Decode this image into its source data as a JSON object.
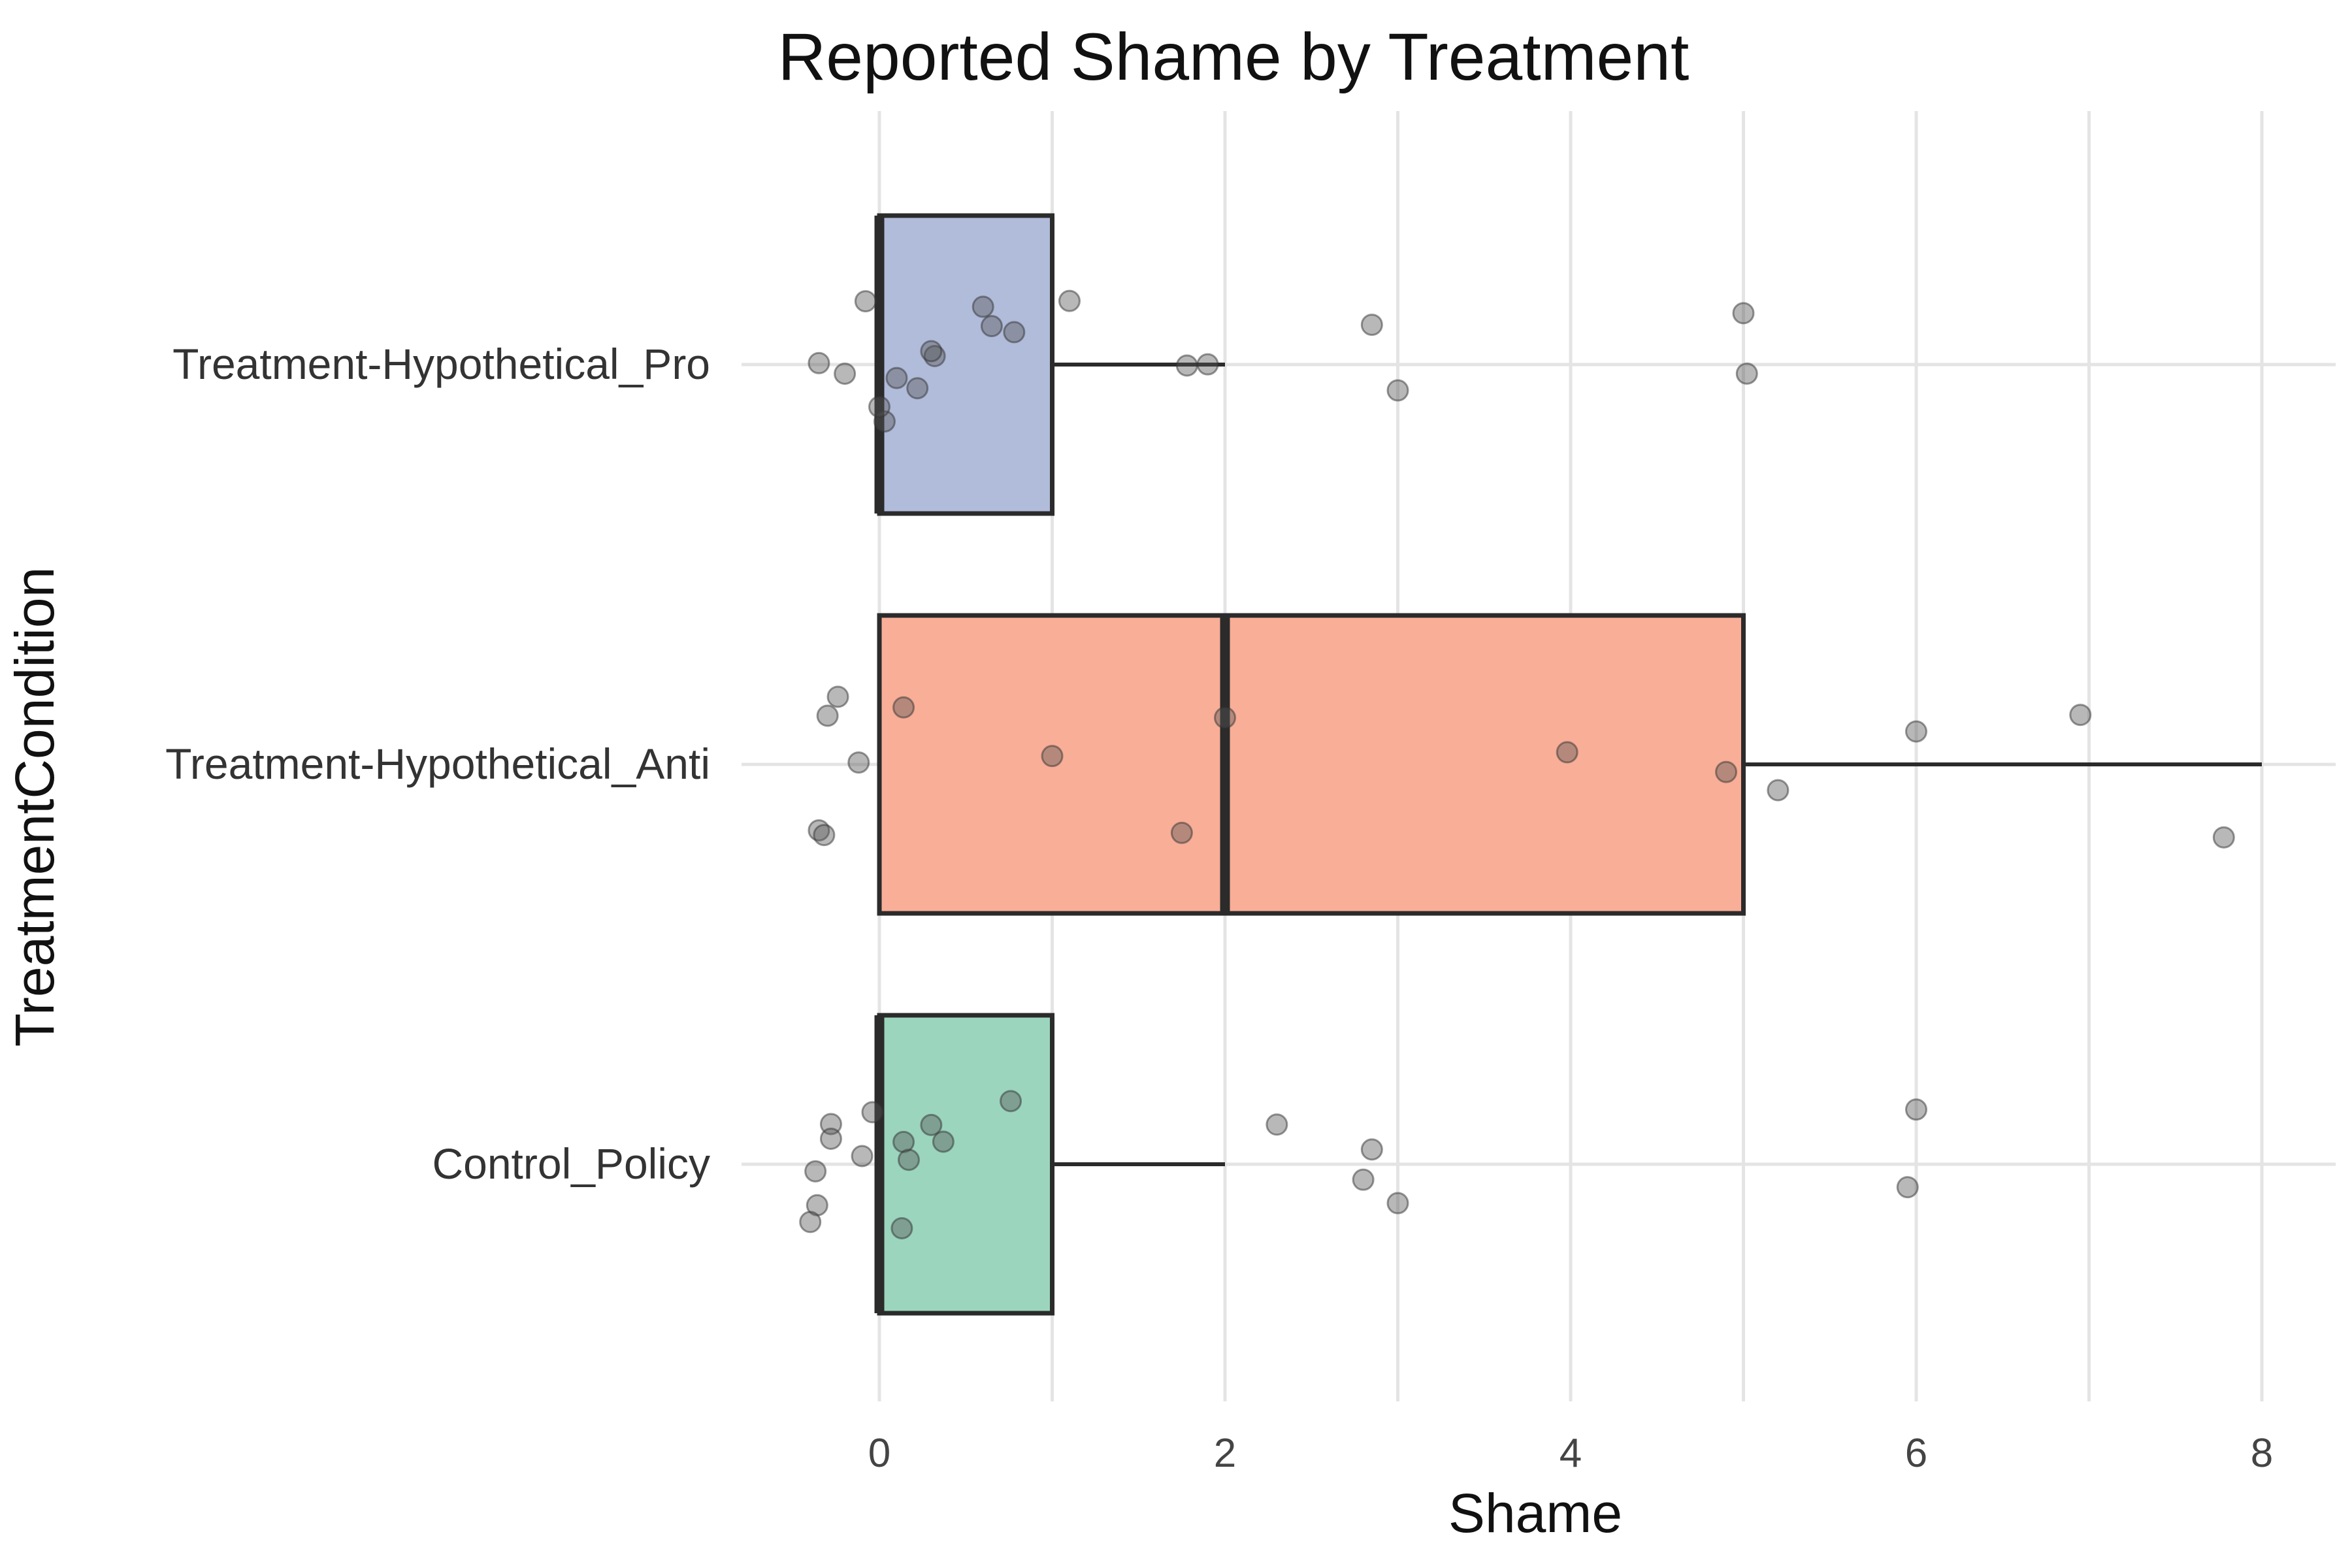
{
  "chart_data": {
    "type": "box",
    "title": "Reported Shame by Treatment",
    "xlabel": "Shame",
    "ylabel": "TreatmentCondition",
    "xlim": [
      -0.9,
      9.2
    ],
    "xticks": [
      0,
      2,
      4,
      6,
      8
    ],
    "xtick_labels": [
      "0",
      "2",
      "4",
      "6",
      "8"
    ],
    "grid": "vertical and horizontal major gridlines, light gray",
    "legend": "none",
    "categories": [
      "Treatment-Hypothetical_Pro",
      "Treatment-Hypothetical_Anti",
      "Control_Policy"
    ],
    "boxes": [
      {
        "category": "Treatment-Hypothetical_Pro",
        "min": 0,
        "q1": 0,
        "median": 0,
        "q3": 1,
        "max": 2,
        "fill": "#b1bcdb"
      },
      {
        "category": "Treatment-Hypothetical_Anti",
        "min": 0,
        "q1": 0,
        "median": 2,
        "q3": 5,
        "max": 8,
        "fill": "#f9ae97"
      },
      {
        "category": "Control_Policy",
        "min": 0,
        "q1": 0,
        "median": 0,
        "q3": 1,
        "max": 2,
        "fill": "#9bd5be"
      }
    ],
    "points": [
      {
        "category": "Treatment-Hypothetical_Pro",
        "x": [
          -0.35,
          -0.2,
          0.6,
          0.65,
          0.32,
          1.78,
          -0.08,
          0.03,
          0.1,
          0.3,
          0.78,
          0.0,
          0.22,
          1.1,
          1.9,
          2.85,
          3.0,
          5.0,
          5.02
        ]
      },
      {
        "category": "Treatment-Hypothetical_Anti",
        "x": [
          -0.12,
          -0.3,
          -0.24,
          -0.35,
          -0.32,
          0.14,
          1.0,
          1.75,
          2.0,
          3.98,
          4.9,
          5.2,
          6.0,
          6.95,
          7.78
        ]
      },
      {
        "category": "Control_Policy",
        "x": [
          -0.1,
          -0.28,
          -0.37,
          -0.28,
          -0.04,
          -0.36,
          0.14,
          0.37,
          0.76,
          0.13,
          0.3,
          -0.4,
          0.17,
          2.3,
          2.8,
          2.85,
          3.0,
          5.95,
          6.0
        ]
      }
    ],
    "colors": {
      "outline": "#2b2b2b",
      "point": "#555555",
      "grid": "#e4e4e4"
    }
  }
}
